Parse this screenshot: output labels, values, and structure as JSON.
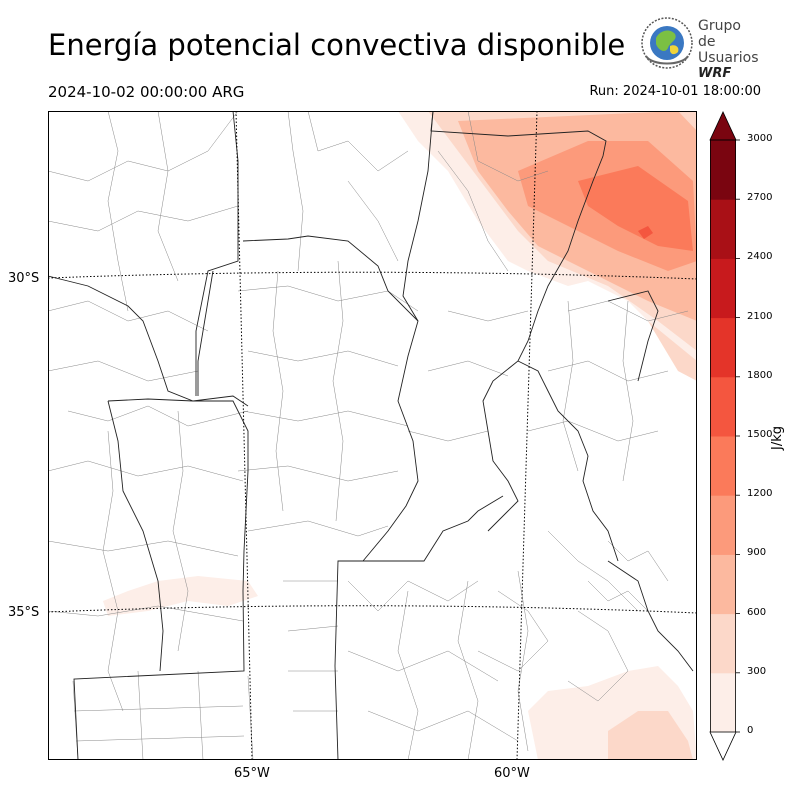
{
  "header": {
    "title": "Energía potencial convectiva disponible",
    "valid_time": "2024-10-02 00:00:00 ARG",
    "run_time": "Run: 2024-10-01 18:00:00"
  },
  "logo": {
    "line1": "Grupo de",
    "line2": "Usuarios",
    "line3": "WRF",
    "icon": "globe-icon"
  },
  "map": {
    "lat_labels": [
      "30°S",
      "35°S"
    ],
    "lon_labels": [
      "65°W",
      "60°W"
    ],
    "field": "CAPE"
  },
  "colorbar": {
    "label": "J/kg",
    "ticks": [
      "0",
      "300",
      "600",
      "900",
      "1200",
      "1500",
      "1800",
      "2100",
      "2400",
      "2700",
      "3000"
    ],
    "levels": [
      0,
      300,
      600,
      900,
      1200,
      1500,
      1800,
      2100,
      2400,
      2700,
      3000
    ],
    "colors": [
      "#fdeee8",
      "#fcd8c9",
      "#fcb99f",
      "#fc9a7b",
      "#fb7a5a",
      "#f4563f",
      "#e43429",
      "#c81a1d",
      "#a91016",
      "#7a0510"
    ],
    "extend": "both"
  }
}
